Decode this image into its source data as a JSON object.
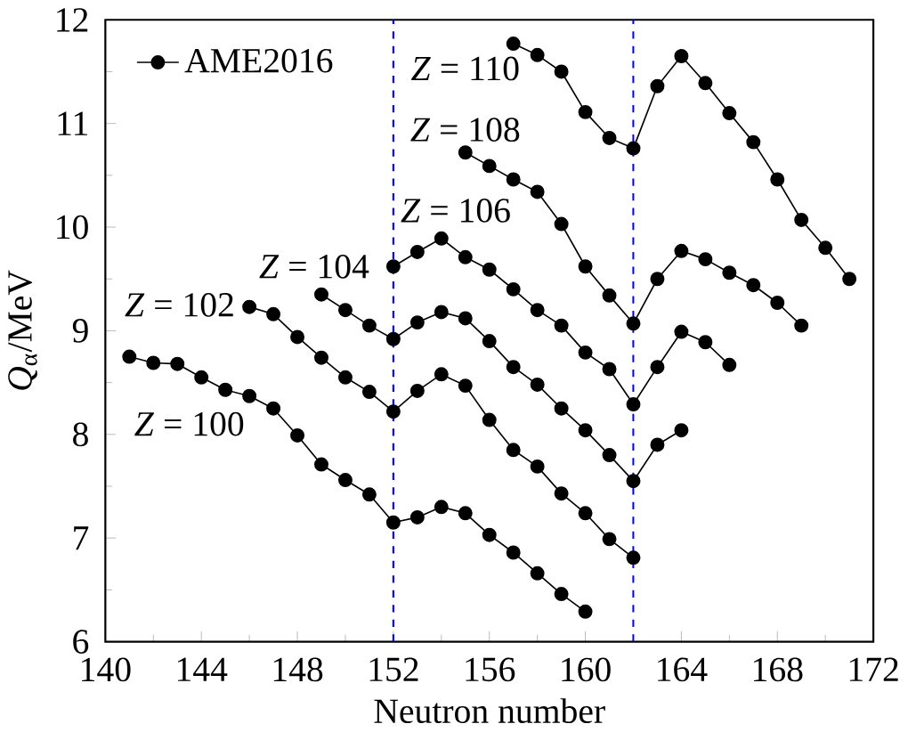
{
  "chart_data": {
    "type": "line",
    "xlabel": "Neutron number",
    "ylabel": "*Q*$_{α}$/MeV",
    "xlim": [
      140,
      172
    ],
    "xticks": [
      140,
      144,
      148,
      152,
      156,
      160,
      164,
      168,
      172
    ],
    "ylim": [
      6,
      12
    ],
    "yticks": [
      6,
      7,
      8,
      9,
      10,
      11,
      12
    ],
    "marker": "circle",
    "line_style": "solid",
    "legend": "top left",
    "grid": false,
    "series": [
      {
        "name": "AME2016",
        "color": "#000000",
        "x": [
          141,
          142,
          143,
          144,
          145,
          146,
          147,
          148,
          149,
          150,
          151,
          152,
          153,
          154,
          155,
          156,
          157,
          158,
          159,
          160
        ],
        "values": [
          8.75,
          8.69,
          8.68,
          8.55,
          8.43,
          8.37,
          8.25,
          7.99,
          7.71,
          7.56,
          7.42,
          7.15,
          7.2,
          7.3,
          7.24,
          7.03,
          6.86,
          6.66,
          6.46,
          6.29
        ]
      },
      {
        "color": "#000000",
        "x": [
          146,
          147,
          148,
          149,
          150,
          151,
          152,
          153,
          154,
          155,
          156,
          157,
          158,
          159,
          160,
          161,
          162
        ],
        "values": [
          9.23,
          9.16,
          8.94,
          8.74,
          8.55,
          8.41,
          8.22,
          8.42,
          8.58,
          8.47,
          8.14,
          7.85,
          7.69,
          7.43,
          7.24,
          6.99,
          6.81
        ]
      },
      {
        "color": "#000000",
        "x": [
          149,
          150,
          151,
          152,
          153,
          154,
          155,
          156,
          157,
          158,
          159,
          160,
          161,
          162,
          163,
          164
        ],
        "values": [
          9.35,
          9.2,
          9.05,
          8.92,
          9.08,
          9.18,
          9.12,
          8.9,
          8.65,
          8.48,
          8.25,
          8.04,
          7.8,
          7.55,
          7.9,
          8.04
        ]
      },
      {
        "color": "#000000",
        "x": [
          152,
          153,
          154,
          155,
          156,
          157,
          158,
          159,
          160,
          161,
          162,
          163,
          164,
          165,
          166
        ],
        "values": [
          9.62,
          9.76,
          9.89,
          9.71,
          9.59,
          9.4,
          9.2,
          9.05,
          8.79,
          8.63,
          8.29,
          8.65,
          8.99,
          8.89,
          8.67
        ]
      },
      {
        "color": "#000000",
        "x": [
          155,
          156,
          157,
          158,
          159,
          160,
          161,
          162,
          163,
          164,
          165,
          166,
          167,
          168,
          169
        ],
        "values": [
          10.72,
          10.59,
          10.46,
          10.34,
          10.03,
          9.62,
          9.34,
          9.07,
          9.5,
          9.77,
          9.69,
          9.56,
          9.44,
          9.27,
          9.05
        ]
      },
      {
        "color": "#000000",
        "x": [
          157,
          158,
          159,
          160,
          161,
          162,
          163,
          164,
          165,
          166,
          167,
          168,
          169,
          170,
          171
        ],
        "values": [
          11.77,
          11.66,
          11.5,
          11.11,
          10.86,
          10.76,
          11.36,
          11.65,
          11.39,
          11.1,
          10.82,
          10.46,
          10.07,
          9.8,
          9.5
        ]
      }
    ],
    "ref_lines": [
      {
        "axis": "x",
        "value": 152,
        "color": "#0000ff",
        "line_style": "dashed"
      },
      {
        "axis": "x",
        "value": 162,
        "color": "#0000ff",
        "line_style": "dashed"
      }
    ],
    "annotations": [
      "*Z* = 100",
      "*Z* = 102",
      "*Z* = 104",
      "*Z* = 106",
      "*Z* = 108",
      "*Z* = 110"
    ]
  }
}
